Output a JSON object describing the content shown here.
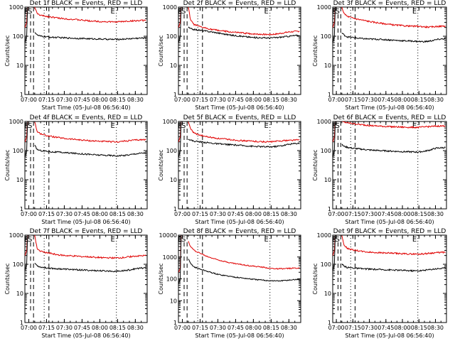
{
  "colors": {
    "events": "#000000",
    "lld": "#e00000",
    "axes": "#000000"
  },
  "common": {
    "ylabel": "Counts/sec",
    "xlabel": "Start Time (05-Jul-08 06:56:40)",
    "xticks": [
      "07:00",
      "07:15",
      "07:30",
      "07:45",
      "08:00",
      "08:15",
      "08:30"
    ],
    "xtick_minutes": [
      420,
      435,
      450,
      465,
      480,
      495,
      510
    ],
    "xlim_minutes": [
      416.7,
      520
    ],
    "yscale": "log",
    "ylim": [
      1,
      1000
    ],
    "yticks_default": [
      "1",
      "10",
      "100",
      "1000"
    ],
    "yticks_large": [
      "1",
      "10",
      "100",
      "1000",
      "10000"
    ]
  },
  "chart_data": [
    {
      "type": "line",
      "title": "Det 1f BLACK = Events, RED = LLD",
      "ylabel": "Counts/sec",
      "xlabel": "Start Time (05-Jul-08 06:56:40)",
      "ylim": [
        1,
        1000
      ],
      "markers": [
        {
          "label": "E",
          "x": 418
        },
        {
          "label": "S",
          "x": 421
        },
        {
          "label": "E",
          "x": 491
        }
      ],
      "series": [
        {
          "color": "red",
          "x": [
            425,
            427,
            430,
            435,
            440,
            445,
            450,
            460,
            470,
            480,
            490,
            495,
            500,
            505,
            510,
            515,
            519
          ],
          "y": [
            1000,
            600,
            520,
            480,
            450,
            420,
            400,
            370,
            340,
            320,
            310,
            310,
            320,
            330,
            340,
            345,
            350
          ]
        },
        {
          "color": "black",
          "x": [
            425,
            427,
            430,
            435,
            440,
            445,
            450,
            460,
            470,
            480,
            490,
            495,
            500,
            505,
            510,
            515,
            519
          ],
          "y": [
            140,
            110,
            100,
            95,
            92,
            90,
            88,
            85,
            82,
            80,
            78,
            78,
            80,
            82,
            85,
            86,
            88
          ]
        }
      ]
    },
    {
      "type": "line",
      "title": "Det 2f BLACK = Events, RED = LLD",
      "ylabel": "Counts/sec",
      "xlabel": "Start Time (05-Jul-08 06:56:40)",
      "ylim": [
        1,
        1000
      ],
      "markers": [
        {
          "label": "E",
          "x": 418
        },
        {
          "label": "S",
          "x": 421
        },
        {
          "label": "E",
          "x": 491
        }
      ],
      "series": [
        {
          "color": "red",
          "x": [
            425,
            427,
            430,
            435,
            440,
            445,
            450,
            460,
            470,
            480,
            490,
            495,
            500,
            505,
            510,
            515,
            519
          ],
          "y": [
            1000,
            350,
            250,
            210,
            190,
            170,
            160,
            140,
            130,
            120,
            115,
            115,
            120,
            130,
            140,
            145,
            150
          ]
        },
        {
          "color": "black",
          "x": [
            425,
            427,
            430,
            435,
            440,
            445,
            450,
            460,
            470,
            480,
            490,
            495,
            500,
            505,
            510,
            515,
            519
          ],
          "y": [
            200,
            180,
            170,
            160,
            150,
            140,
            130,
            110,
            100,
            90,
            88,
            88,
            90,
            95,
            100,
            105,
            108
          ]
        }
      ]
    },
    {
      "type": "line",
      "title": "Det 3f BLACK = Events, RED = LLD",
      "ylabel": "Counts/sec",
      "xlabel": "Start Time (05-Jul-08 06:56:40)",
      "ylim": [
        1,
        1000
      ],
      "markers": [
        {
          "label": "E",
          "x": 418
        },
        {
          "label": "S",
          "x": 421
        },
        {
          "label": "E",
          "x": 491
        }
      ],
      "series": [
        {
          "color": "red",
          "x": [
            425,
            427,
            430,
            435,
            440,
            445,
            450,
            460,
            470,
            480,
            490,
            495,
            500,
            505,
            510,
            515,
            519
          ],
          "y": [
            1000,
            600,
            480,
            420,
            380,
            350,
            320,
            280,
            250,
            230,
            220,
            220,
            210,
            205,
            215,
            220,
            225
          ]
        },
        {
          "color": "black",
          "x": [
            425,
            427,
            430,
            435,
            440,
            445,
            450,
            460,
            470,
            480,
            490,
            495,
            500,
            505,
            510,
            515,
            519
          ],
          "y": [
            130,
            110,
            95,
            90,
            85,
            82,
            80,
            78,
            74,
            70,
            68,
            66,
            65,
            68,
            75,
            80,
            82
          ]
        }
      ]
    },
    {
      "type": "line",
      "title": "Det 4f BLACK = Events, RED = LLD",
      "ylabel": "Counts/sec",
      "xlabel": "Start Time (05-Jul-08 06:56:40)",
      "ylim": [
        1,
        1000
      ],
      "markers": [
        {
          "label": "E",
          "x": 418
        },
        {
          "label": "S",
          "x": 421
        },
        {
          "label": "E",
          "x": 491
        }
      ],
      "series": [
        {
          "color": "red",
          "x": [
            425,
            427,
            430,
            435,
            440,
            445,
            450,
            460,
            470,
            480,
            490,
            495,
            500,
            505,
            510,
            515,
            519
          ],
          "y": [
            1000,
            450,
            380,
            330,
            300,
            280,
            260,
            240,
            220,
            210,
            200,
            200,
            210,
            220,
            230,
            235,
            240
          ]
        },
        {
          "color": "black",
          "x": [
            425,
            427,
            430,
            435,
            440,
            445,
            450,
            460,
            470,
            480,
            490,
            495,
            500,
            505,
            510,
            515,
            519
          ],
          "y": [
            150,
            110,
            100,
            95,
            90,
            88,
            85,
            80,
            75,
            70,
            68,
            66,
            68,
            72,
            78,
            82,
            84
          ]
        }
      ]
    },
    {
      "type": "line",
      "title": "Det 5f BLACK = Events, RED = LLD",
      "ylabel": "Counts/sec",
      "xlabel": "Start Time (05-Jul-08 06:56:40)",
      "ylim": [
        1,
        1000
      ],
      "markers": [
        {
          "label": "E",
          "x": 418
        },
        {
          "label": "S",
          "x": 421
        },
        {
          "label": "E",
          "x": 491
        }
      ],
      "series": [
        {
          "color": "red",
          "x": [
            425,
            427,
            430,
            435,
            440,
            445,
            450,
            460,
            470,
            480,
            490,
            495,
            500,
            505,
            510,
            515,
            519
          ],
          "y": [
            1000,
            550,
            400,
            340,
            300,
            280,
            260,
            240,
            220,
            210,
            200,
            200,
            210,
            220,
            225,
            230,
            235
          ]
        },
        {
          "color": "black",
          "x": [
            425,
            427,
            430,
            435,
            440,
            445,
            450,
            460,
            470,
            480,
            490,
            495,
            500,
            505,
            510,
            515,
            519
          ],
          "y": [
            250,
            230,
            210,
            200,
            190,
            180,
            170,
            160,
            150,
            140,
            135,
            135,
            140,
            150,
            165,
            175,
            180
          ]
        }
      ]
    },
    {
      "type": "line",
      "title": "Det 6f BLACK = Events, RED = LLD",
      "ylabel": "Counts/sec",
      "xlabel": "Start Time (05-Jul-08 06:56:40)",
      "ylim": [
        1,
        1000
      ],
      "markers": [
        {
          "label": "E",
          "x": 418
        },
        {
          "label": "S",
          "x": 421
        },
        {
          "label": "E",
          "x": 491
        }
      ],
      "series": [
        {
          "color": "red",
          "x": [
            425,
            427,
            430,
            435,
            440,
            445,
            450,
            460,
            470,
            480,
            490,
            495,
            500,
            505,
            510,
            515,
            519
          ],
          "y": [
            1000,
            950,
            900,
            850,
            800,
            760,
            730,
            690,
            660,
            640,
            630,
            630,
            650,
            670,
            690,
            700,
            710
          ]
        },
        {
          "color": "black",
          "x": [
            425,
            427,
            430,
            435,
            440,
            445,
            450,
            460,
            470,
            480,
            490,
            495,
            500,
            505,
            510,
            515,
            519
          ],
          "y": [
            160,
            140,
            130,
            120,
            115,
            110,
            105,
            100,
            96,
            92,
            90,
            90,
            95,
            105,
            120,
            125,
            128
          ]
        }
      ]
    },
    {
      "type": "line",
      "title": "Det 7f BLACK = Events, RED = LLD",
      "ylabel": "Counts/sec",
      "xlabel": "Start Time (05-Jul-08 06:56:40)",
      "ylim": [
        1,
        1000
      ],
      "markers": [
        {
          "label": "E",
          "x": 418
        },
        {
          "label": "S",
          "x": 421
        },
        {
          "label": "E",
          "x": 491
        }
      ],
      "series": [
        {
          "color": "red",
          "x": [
            425,
            427,
            430,
            435,
            440,
            445,
            450,
            460,
            470,
            480,
            490,
            495,
            500,
            505,
            510,
            515,
            519
          ],
          "y": [
            1000,
            350,
            280,
            250,
            230,
            210,
            200,
            190,
            180,
            170,
            165,
            165,
            170,
            180,
            190,
            195,
            200
          ]
        },
        {
          "color": "black",
          "x": [
            425,
            427,
            430,
            435,
            440,
            445,
            450,
            460,
            470,
            480,
            490,
            495,
            500,
            505,
            510,
            515,
            519
          ],
          "y": [
            110,
            90,
            80,
            75,
            72,
            70,
            68,
            65,
            62,
            60,
            58,
            58,
            60,
            64,
            70,
            74,
            76
          ]
        }
      ]
    },
    {
      "type": "line",
      "title": "Det 8f BLACK = Events, RED = LLD",
      "ylabel": "Counts/sec",
      "xlabel": "Start Time (05-Jul-08 06:56:40)",
      "ylim": [
        1,
        10000
      ],
      "markers": [
        {
          "label": "E",
          "x": 418
        },
        {
          "label": "S",
          "x": 421
        },
        {
          "label": "E",
          "x": 491
        }
      ],
      "series": [
        {
          "color": "red",
          "x": [
            425,
            427,
            430,
            435,
            440,
            445,
            450,
            460,
            470,
            480,
            490,
            495,
            500,
            505,
            510,
            515,
            519
          ],
          "y": [
            5000,
            3000,
            2000,
            1500,
            1100,
            900,
            750,
            550,
            450,
            380,
            330,
            300,
            290,
            290,
            300,
            310,
            320
          ]
        },
        {
          "color": "black",
          "x": [
            425,
            427,
            430,
            435,
            440,
            445,
            450,
            460,
            470,
            480,
            490,
            495,
            500,
            505,
            510,
            515,
            519
          ],
          "y": [
            800,
            500,
            350,
            280,
            230,
            190,
            160,
            130,
            110,
            95,
            85,
            82,
            80,
            82,
            88,
            92,
            95
          ]
        }
      ]
    },
    {
      "type": "line",
      "title": "Det 9f BLACK = Events, RED = LLD",
      "ylabel": "Counts/sec",
      "xlabel": "Start Time (05-Jul-08 06:56:40)",
      "ylim": [
        1,
        1000
      ],
      "markers": [
        {
          "label": "E",
          "x": 418
        },
        {
          "label": "S",
          "x": 421
        },
        {
          "label": "E",
          "x": 491
        }
      ],
      "series": [
        {
          "color": "red",
          "x": [
            425,
            427,
            430,
            435,
            440,
            445,
            450,
            460,
            470,
            480,
            490,
            495,
            500,
            505,
            510,
            515,
            519
          ],
          "y": [
            1000,
            450,
            350,
            310,
            290,
            270,
            260,
            250,
            240,
            230,
            225,
            225,
            230,
            240,
            250,
            255,
            260
          ]
        },
        {
          "color": "black",
          "x": [
            425,
            427,
            430,
            435,
            440,
            445,
            450,
            460,
            470,
            480,
            490,
            495,
            500,
            505,
            510,
            515,
            519
          ],
          "y": [
            100,
            85,
            78,
            75,
            72,
            70,
            68,
            66,
            64,
            62,
            60,
            60,
            62,
            66,
            70,
            72,
            74
          ]
        }
      ]
    }
  ]
}
